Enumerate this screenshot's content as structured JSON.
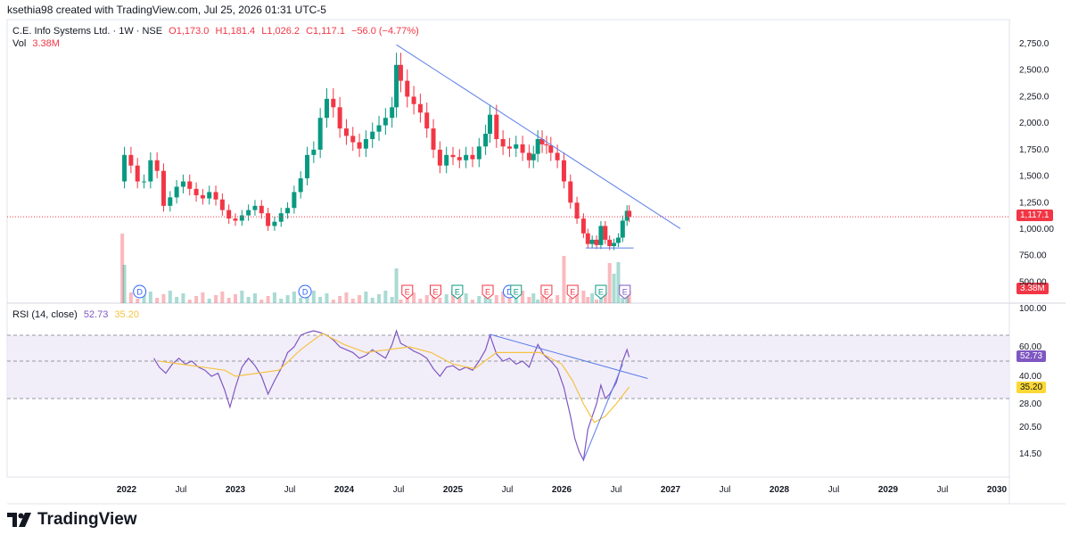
{
  "watermark": "ksethia98 created with TradingView.com, Jul 25, 2026 01:31 UTC-5",
  "legend": {
    "symbol": "C.E. Info Systems Ltd. · 1W · NSE",
    "open": "O1,173.0",
    "high": "H1,181.4",
    "low": "L1,026.2",
    "close": "C1,117.1",
    "change": "−56.0 (−4.77%)",
    "vol_label": "Vol",
    "vol_value": "3.38M"
  },
  "rsi_legend": {
    "label": "RSI (14, close)",
    "rsi_value": "52.73",
    "ma_value": "35.20"
  },
  "tags": {
    "price": "1,117.1",
    "volume": "3.38M",
    "rsi": "52.73",
    "rsi_ma": "35.20"
  },
  "branding": {
    "logo_text": "TradingView"
  },
  "colors": {
    "up": "#089981",
    "down": "#f23645",
    "trend": "#5b7de8",
    "rsi": "#7e57c2",
    "rsi_ma": "#f5c242",
    "band": "#ede7f6"
  },
  "chart_data": [
    {
      "type": "candlestick",
      "title": "C.E. Info Systems Ltd. · 1W · NSE",
      "y_ticks": [
        "2,750.0",
        "2,500.0",
        "2,250.0",
        "2,000.0",
        "1,750.0",
        "1,500.0",
        "1,250.0",
        "1,000.00",
        "750.00",
        "500.00"
      ],
      "ylim": [
        430,
        2830
      ],
      "x_labels": [
        "2022",
        "Jul",
        "2023",
        "Jul",
        "2024",
        "Jul",
        "2025",
        "Jul",
        "2026",
        "Jul",
        "2027",
        "Jul",
        "2028",
        "Jul",
        "2029",
        "Jul",
        "2030"
      ],
      "xlim_years": [
        2021.55,
        2030.1
      ],
      "last_close": 1117.1,
      "price_path": [
        [
          2021.96,
          1450
        ],
        [
          2021.98,
          1700
        ],
        [
          2022.04,
          1600
        ],
        [
          2022.1,
          1450
        ],
        [
          2022.16,
          1450
        ],
        [
          2022.22,
          1650
        ],
        [
          2022.28,
          1550
        ],
        [
          2022.34,
          1220
        ],
        [
          2022.4,
          1300
        ],
        [
          2022.46,
          1400
        ],
        [
          2022.52,
          1450
        ],
        [
          2022.58,
          1380
        ],
        [
          2022.64,
          1320
        ],
        [
          2022.7,
          1290
        ],
        [
          2022.76,
          1350
        ],
        [
          2022.82,
          1280
        ],
        [
          2022.88,
          1180
        ],
        [
          2022.94,
          1100
        ],
        [
          2023.0,
          1080
        ],
        [
          2023.06,
          1130
        ],
        [
          2023.12,
          1180
        ],
        [
          2023.18,
          1220
        ],
        [
          2023.24,
          1150
        ],
        [
          2023.3,
          1030
        ],
        [
          2023.36,
          1070
        ],
        [
          2023.42,
          1150
        ],
        [
          2023.48,
          1200
        ],
        [
          2023.54,
          1350
        ],
        [
          2023.6,
          1480
        ],
        [
          2023.66,
          1700
        ],
        [
          2023.72,
          1750
        ],
        [
          2023.78,
          2050
        ],
        [
          2023.84,
          2230
        ],
        [
          2023.9,
          2150
        ],
        [
          2023.96,
          1950
        ],
        [
          2024.02,
          1880
        ],
        [
          2024.08,
          1820
        ],
        [
          2024.14,
          1760
        ],
        [
          2024.2,
          1850
        ],
        [
          2024.26,
          1920
        ],
        [
          2024.32,
          1980
        ],
        [
          2024.38,
          2050
        ],
        [
          2024.44,
          2150
        ],
        [
          2024.48,
          2550
        ],
        [
          2024.52,
          2400
        ],
        [
          2024.58,
          2250
        ],
        [
          2024.64,
          2180
        ],
        [
          2024.7,
          2100
        ],
        [
          2024.76,
          1950
        ],
        [
          2024.82,
          1750
        ],
        [
          2024.88,
          1600
        ],
        [
          2024.94,
          1700
        ],
        [
          2025.0,
          1680
        ],
        [
          2025.06,
          1650
        ],
        [
          2025.12,
          1700
        ],
        [
          2025.18,
          1660
        ],
        [
          2025.24,
          1780
        ],
        [
          2025.3,
          1900
        ],
        [
          2025.34,
          2080
        ],
        [
          2025.4,
          1850
        ],
        [
          2025.46,
          1780
        ],
        [
          2025.52,
          1760
        ],
        [
          2025.58,
          1800
        ],
        [
          2025.64,
          1720
        ],
        [
          2025.7,
          1650
        ],
        [
          2025.74,
          1710
        ],
        [
          2025.78,
          1850
        ],
        [
          2025.82,
          1800
        ],
        [
          2025.86,
          1790
        ],
        [
          2025.9,
          1720
        ],
        [
          2025.96,
          1650
        ],
        [
          2026.02,
          1450
        ],
        [
          2026.08,
          1250
        ],
        [
          2026.14,
          1100
        ],
        [
          2026.2,
          960
        ],
        [
          2026.24,
          860
        ],
        [
          2026.28,
          900
        ],
        [
          2026.32,
          850
        ],
        [
          2026.36,
          1030
        ],
        [
          2026.4,
          900
        ],
        [
          2026.44,
          840
        ],
        [
          2026.48,
          870
        ],
        [
          2026.52,
          920
        ],
        [
          2026.56,
          1080
        ],
        [
          2026.6,
          1173
        ],
        [
          2026.62,
          1117.1
        ]
      ],
      "trendlines": [
        {
          "from": [
            2024.48,
            2740
          ],
          "to": [
            2027.09,
            1005
          ]
        },
        {
          "from": [
            2026.22,
            822
          ],
          "to": [
            2026.66,
            822
          ]
        }
      ],
      "annotations": {
        "dividends": [
          "D",
          "D",
          "D"
        ],
        "earnings": [
          "E",
          "E",
          "E",
          "E",
          "E",
          "E",
          "E",
          "E",
          "E",
          "E"
        ]
      },
      "volume": {
        "label": "Vol",
        "last": "3.38M"
      }
    },
    {
      "type": "line",
      "title": "RSI (14, close)",
      "y_ticks": [
        "100.00",
        "60.00",
        "40.00",
        "28.00",
        "20.50",
        "14.50"
      ],
      "levels": [
        70,
        50,
        30
      ],
      "series": [
        {
          "name": "RSI",
          "color": "#7e57c2",
          "points": [
            [
              2022.25,
              52
            ],
            [
              2022.3,
              46
            ],
            [
              2022.36,
              42
            ],
            [
              2022.42,
              48
            ],
            [
              2022.48,
              52
            ],
            [
              2022.54,
              48
            ],
            [
              2022.6,
              50
            ],
            [
              2022.66,
              46
            ],
            [
              2022.72,
              44
            ],
            [
              2022.78,
              40
            ],
            [
              2022.84,
              42
            ],
            [
              2022.9,
              34
            ],
            [
              2022.95,
              27
            ],
            [
              2023.0,
              35
            ],
            [
              2023.06,
              46
            ],
            [
              2023.12,
              52
            ],
            [
              2023.18,
              47
            ],
            [
              2023.24,
              40
            ],
            [
              2023.3,
              32
            ],
            [
              2023.36,
              38
            ],
            [
              2023.42,
              45
            ],
            [
              2023.48,
              56
            ],
            [
              2023.54,
              60
            ],
            [
              2023.6,
              70
            ],
            [
              2023.66,
              73
            ],
            [
              2023.72,
              75
            ],
            [
              2023.78,
              73
            ],
            [
              2023.84,
              70
            ],
            [
              2023.9,
              66
            ],
            [
              2023.96,
              60
            ],
            [
              2024.02,
              58
            ],
            [
              2024.08,
              56
            ],
            [
              2024.14,
              52
            ],
            [
              2024.2,
              54
            ],
            [
              2024.26,
              58
            ],
            [
              2024.32,
              55
            ],
            [
              2024.38,
              52
            ],
            [
              2024.44,
              62
            ],
            [
              2024.48,
              75
            ],
            [
              2024.52,
              63
            ],
            [
              2024.58,
              60
            ],
            [
              2024.64,
              57
            ],
            [
              2024.7,
              55
            ],
            [
              2024.76,
              52
            ],
            [
              2024.82,
              45
            ],
            [
              2024.88,
              40
            ],
            [
              2024.94,
              46
            ],
            [
              2025.0,
              47
            ],
            [
              2025.06,
              44
            ],
            [
              2025.12,
              46
            ],
            [
              2025.18,
              44
            ],
            [
              2025.24,
              50
            ],
            [
              2025.3,
              58
            ],
            [
              2025.34,
              70
            ],
            [
              2025.4,
              55
            ],
            [
              2025.46,
              50
            ],
            [
              2025.52,
              52
            ],
            [
              2025.58,
              48
            ],
            [
              2025.64,
              50
            ],
            [
              2025.7,
              46
            ],
            [
              2025.74,
              54
            ],
            [
              2025.78,
              62
            ],
            [
              2025.84,
              54
            ],
            [
              2025.9,
              50
            ],
            [
              2025.96,
              45
            ],
            [
              2026.02,
              35
            ],
            [
              2026.08,
              24
            ],
            [
              2026.12,
              18
            ],
            [
              2026.16,
              15
            ],
            [
              2026.2,
              13
            ],
            [
              2026.24,
              20
            ],
            [
              2026.28,
              24
            ],
            [
              2026.32,
              28
            ],
            [
              2026.36,
              36
            ],
            [
              2026.4,
              30
            ],
            [
              2026.44,
              32
            ],
            [
              2026.5,
              37
            ],
            [
              2026.56,
              50
            ],
            [
              2026.6,
              58
            ],
            [
              2026.62,
              52.73
            ]
          ]
        },
        {
          "name": "MA",
          "color": "#f5c242",
          "points": [
            [
              2022.3,
              50
            ],
            [
              2022.5,
              48
            ],
            [
              2022.7,
              46
            ],
            [
              2022.9,
              44
            ],
            [
              2023.0,
              40
            ],
            [
              2023.2,
              42
            ],
            [
              2023.4,
              44
            ],
            [
              2023.6,
              58
            ],
            [
              2023.8,
              72
            ],
            [
              2024.0,
              62
            ],
            [
              2024.2,
              56
            ],
            [
              2024.4,
              58
            ],
            [
              2024.6,
              60
            ],
            [
              2024.8,
              56
            ],
            [
              2025.0,
              48
            ],
            [
              2025.2,
              45
            ],
            [
              2025.4,
              56
            ],
            [
              2025.6,
              56
            ],
            [
              2025.8,
              56
            ],
            [
              2026.0,
              48
            ],
            [
              2026.1,
              38
            ],
            [
              2026.2,
              28
            ],
            [
              2026.3,
              22
            ],
            [
              2026.4,
              24
            ],
            [
              2026.5,
              28
            ],
            [
              2026.62,
              35.2
            ]
          ]
        }
      ],
      "trendlines": [
        {
          "from": [
            2025.34,
            71
          ],
          "to": [
            2026.79,
            39
          ]
        },
        {
          "from": [
            2026.2,
            13
          ],
          "to": [
            2026.56,
            48
          ]
        }
      ]
    }
  ]
}
